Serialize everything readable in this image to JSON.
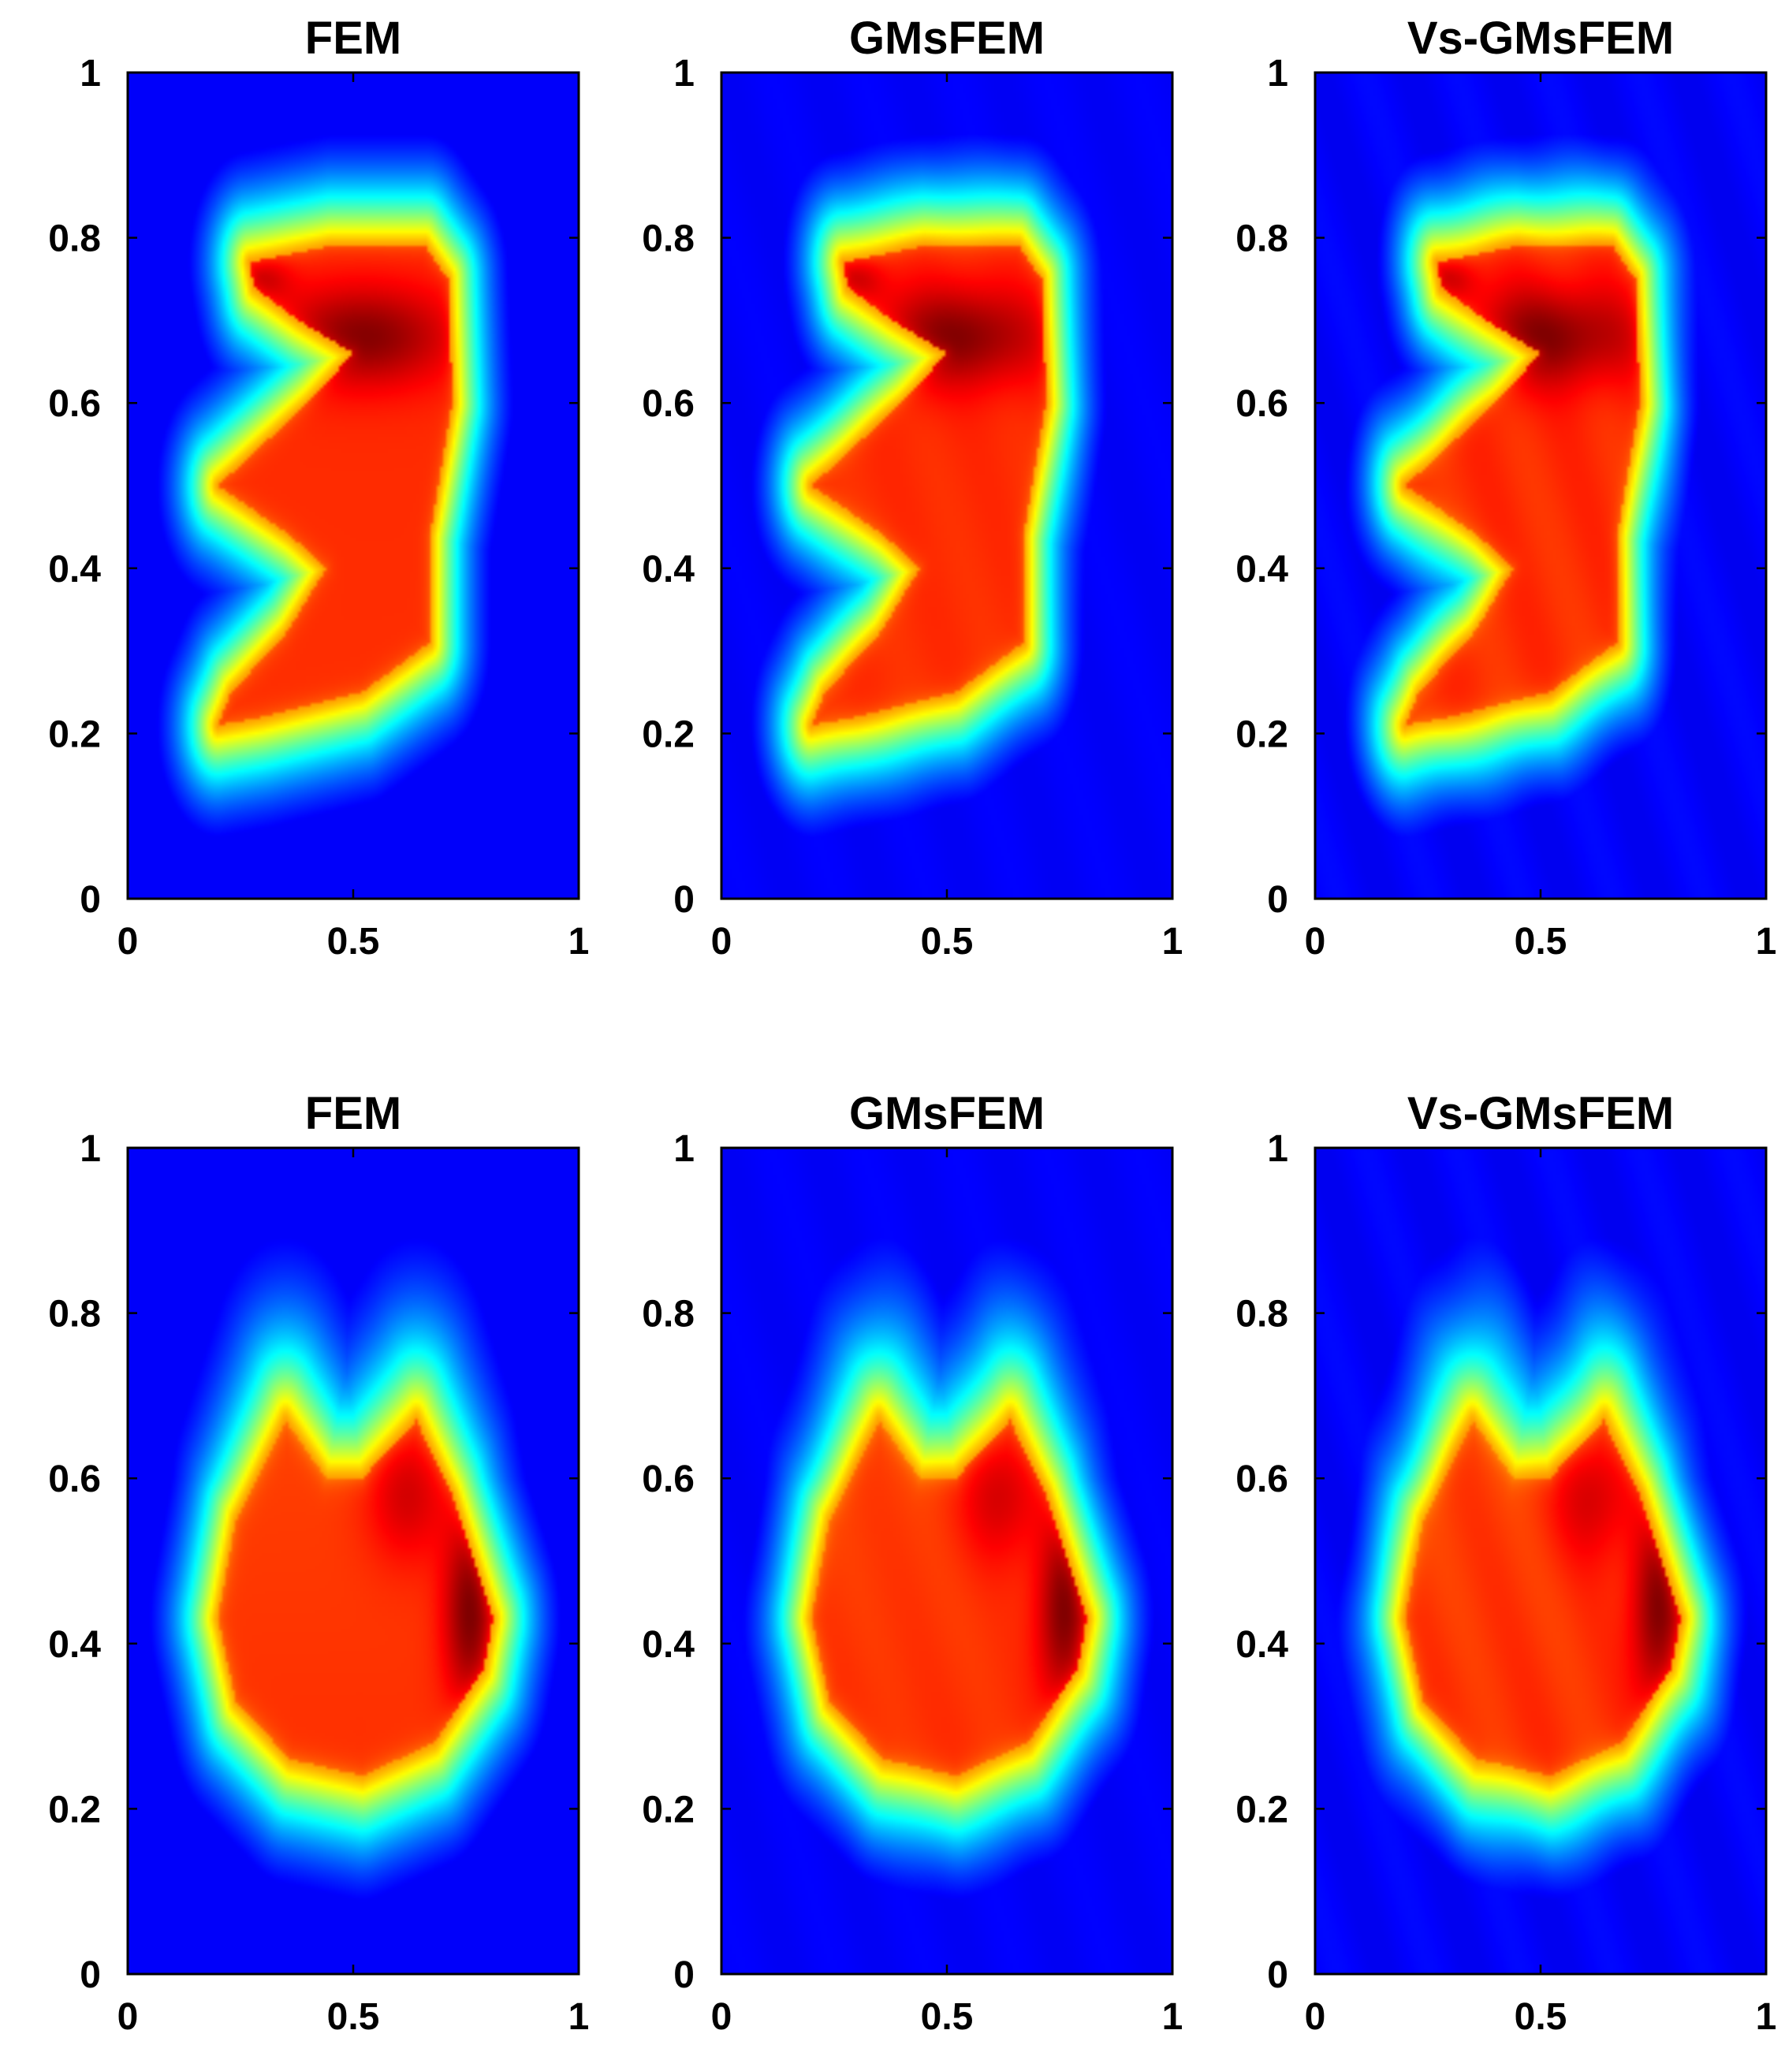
{
  "chart_data": [
    {
      "type": "heatmap",
      "title": "FEM",
      "xlim": [
        0,
        1
      ],
      "ylim": [
        0,
        1
      ],
      "xticks": [
        0,
        0.5,
        1
      ],
      "xtick_labels": [
        "0",
        "0.5",
        "1"
      ],
      "yticks": [
        0,
        0.2,
        0.4,
        0.6,
        0.8,
        1
      ],
      "ytick_labels": [
        "0",
        "0.2",
        "0.4",
        "0.6",
        "0.8",
        "1"
      ],
      "colormap": "jet",
      "field": "s-shaped"
    },
    {
      "type": "heatmap",
      "title": "GMsFEM",
      "xlim": [
        0,
        1
      ],
      "ylim": [
        0,
        1
      ],
      "xticks": [
        0,
        0.5,
        1
      ],
      "xtick_labels": [
        "0",
        "0.5",
        "1"
      ],
      "yticks": [
        0,
        0.2,
        0.4,
        0.6,
        0.8,
        1
      ],
      "ytick_labels": [
        "0",
        "0.2",
        "0.4",
        "0.6",
        "0.8",
        "1"
      ],
      "colormap": "jet",
      "field": "s-shaped"
    },
    {
      "type": "heatmap",
      "title": "Vs-GMsFEM",
      "xlim": [
        0,
        1
      ],
      "ylim": [
        0,
        1
      ],
      "xticks": [
        0,
        0.5,
        1
      ],
      "xtick_labels": [
        "0",
        "0.5",
        "1"
      ],
      "yticks": [
        0,
        0.2,
        0.4,
        0.6,
        0.8,
        1
      ],
      "ytick_labels": [
        "0",
        "0.2",
        "0.4",
        "0.6",
        "0.8",
        "1"
      ],
      "colormap": "jet",
      "field": "s-shaped"
    },
    {
      "type": "heatmap",
      "title": "FEM",
      "xlim": [
        0,
        1
      ],
      "ylim": [
        0,
        1
      ],
      "xticks": [
        0,
        0.5,
        1
      ],
      "xtick_labels": [
        "0",
        "0.5",
        "1"
      ],
      "yticks": [
        0,
        0.2,
        0.4,
        0.6,
        0.8,
        1
      ],
      "ytick_labels": [
        "0",
        "0.2",
        "0.4",
        "0.6",
        "0.8",
        "1"
      ],
      "colormap": "jet",
      "field": "two-peak"
    },
    {
      "type": "heatmap",
      "title": "GMsFEM",
      "xlim": [
        0,
        1
      ],
      "ylim": [
        0,
        1
      ],
      "xticks": [
        0,
        0.5,
        1
      ],
      "xtick_labels": [
        "0",
        "0.5",
        "1"
      ],
      "yticks": [
        0,
        0.2,
        0.4,
        0.6,
        0.8,
        1
      ],
      "ytick_labels": [
        "0",
        "0.2",
        "0.4",
        "0.6",
        "0.8",
        "1"
      ],
      "colormap": "jet",
      "field": "two-peak"
    },
    {
      "type": "heatmap",
      "title": "Vs-GMsFEM",
      "xlim": [
        0,
        1
      ],
      "ylim": [
        0,
        1
      ],
      "xticks": [
        0,
        0.5,
        1
      ],
      "xtick_labels": [
        "0",
        "0.5",
        "1"
      ],
      "yticks": [
        0,
        0.2,
        0.4,
        0.6,
        0.8,
        1
      ],
      "ytick_labels": [
        "0",
        "0.2",
        "0.4",
        "0.6",
        "0.8",
        "1"
      ],
      "colormap": "jet",
      "field": "two-peak"
    }
  ]
}
